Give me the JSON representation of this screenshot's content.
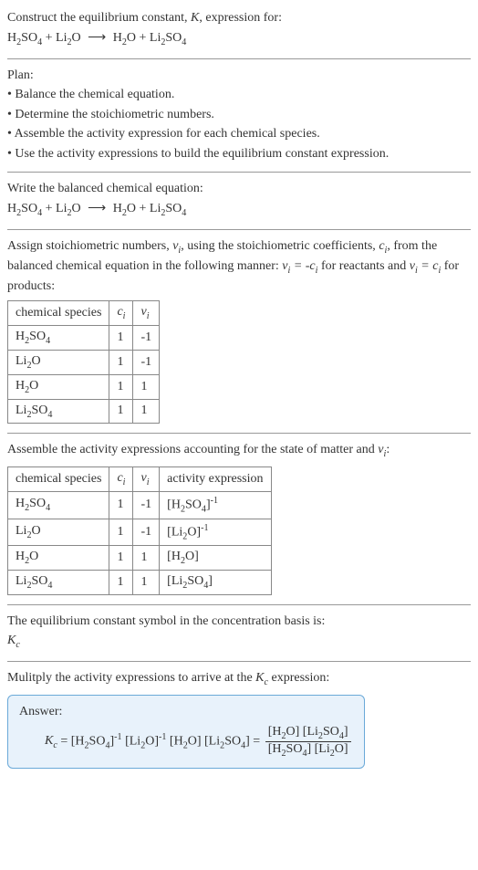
{
  "header": {
    "title_prefix": "Construct the equilibrium constant, ",
    "title_var": "K",
    "title_suffix": ", expression for:"
  },
  "plan": {
    "label": "Plan:",
    "steps": [
      "Balance the chemical equation.",
      "Determine the stoichiometric numbers.",
      "Assemble the activity expression for each chemical species.",
      "Use the activity expressions to build the equilibrium constant expression."
    ]
  },
  "balanced_label": "Write the balanced chemical equation:",
  "stoich_text_1": "Assign stoichiometric numbers, ",
  "stoich_text_2": ", using the stoichiometric coefficients, ",
  "stoich_text_3": ", from the balanced chemical equation in the following manner: ",
  "stoich_text_4": " for reactants and ",
  "stoich_text_5": " for products:",
  "table1": {
    "headers": [
      "chemical species",
      "cᵢ",
      "νᵢ"
    ],
    "rows": [
      {
        "sp": "H2SO4",
        "c": "1",
        "v": "-1"
      },
      {
        "sp": "Li2O",
        "c": "1",
        "v": "-1"
      },
      {
        "sp": "H2O",
        "c": "1",
        "v": "1"
      },
      {
        "sp": "Li2SO4",
        "c": "1",
        "v": "1"
      }
    ]
  },
  "activity_text_1": "Assemble the activity expressions accounting for the state of matter and ",
  "activity_text_2": ":",
  "table2": {
    "headers": [
      "chemical species",
      "cᵢ",
      "νᵢ",
      "activity expression"
    ],
    "rows": [
      {
        "sp": "H2SO4",
        "c": "1",
        "v": "-1",
        "act_sp": "H2SO4",
        "exp": "-1"
      },
      {
        "sp": "Li2O",
        "c": "1",
        "v": "-1",
        "act_sp": "Li2O",
        "exp": "-1"
      },
      {
        "sp": "H2O",
        "c": "1",
        "v": "1",
        "act_sp": "H2O",
        "exp": ""
      },
      {
        "sp": "Li2SO4",
        "c": "1",
        "v": "1",
        "act_sp": "Li2SO4",
        "exp": ""
      }
    ]
  },
  "kc_text": "The equilibrium constant symbol in the concentration basis is:",
  "kc_symbol": "K",
  "kc_sub": "c",
  "multiply_text_1": "Mulitply the activity expressions to arrive at the ",
  "multiply_text_2": " expression:",
  "answer_label": "Answer:"
}
